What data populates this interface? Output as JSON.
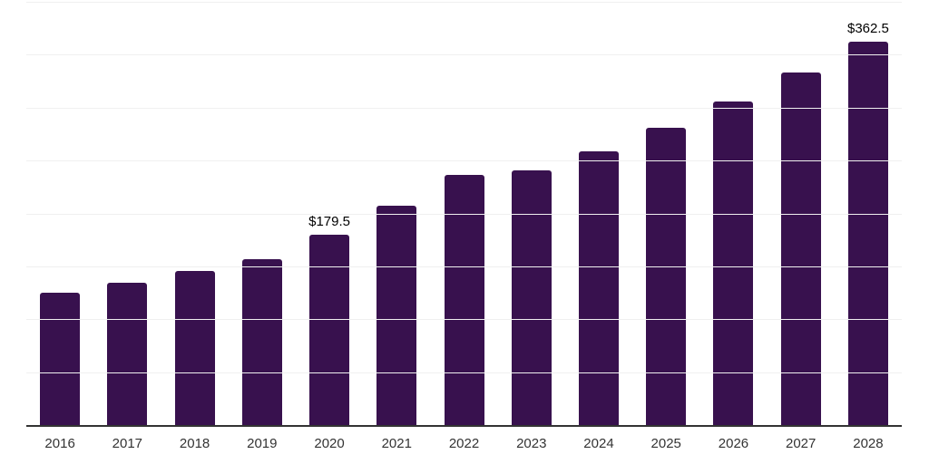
{
  "chart_data": {
    "type": "bar",
    "title": "",
    "xlabel": "",
    "ylabel": "",
    "categories": [
      "2016",
      "2017",
      "2018",
      "2019",
      "2020",
      "2021",
      "2022",
      "2023",
      "2024",
      "2025",
      "2026",
      "2027",
      "2028"
    ],
    "values": [
      125.0,
      134.3,
      145.3,
      156.6,
      179.5,
      207.0,
      236.0,
      240.4,
      258.8,
      280.9,
      305.4,
      333.0,
      362.5
    ],
    "data_labels": [
      "",
      "",
      "",
      "",
      "$179.5",
      "",
      "",
      "",
      "",
      "",
      "",
      "",
      "$362.5"
    ],
    "ylim": [
      0,
      400
    ],
    "gridline_step": 50,
    "grid": true,
    "y_tick_labels_visible": false,
    "legend_position": "none",
    "colors": {
      "bar": "#38114e",
      "axis_line": "#333333",
      "gridline": "#f0f0f0",
      "tick_label": "#333333",
      "data_label": "#000000",
      "background": "#ffffff"
    }
  }
}
